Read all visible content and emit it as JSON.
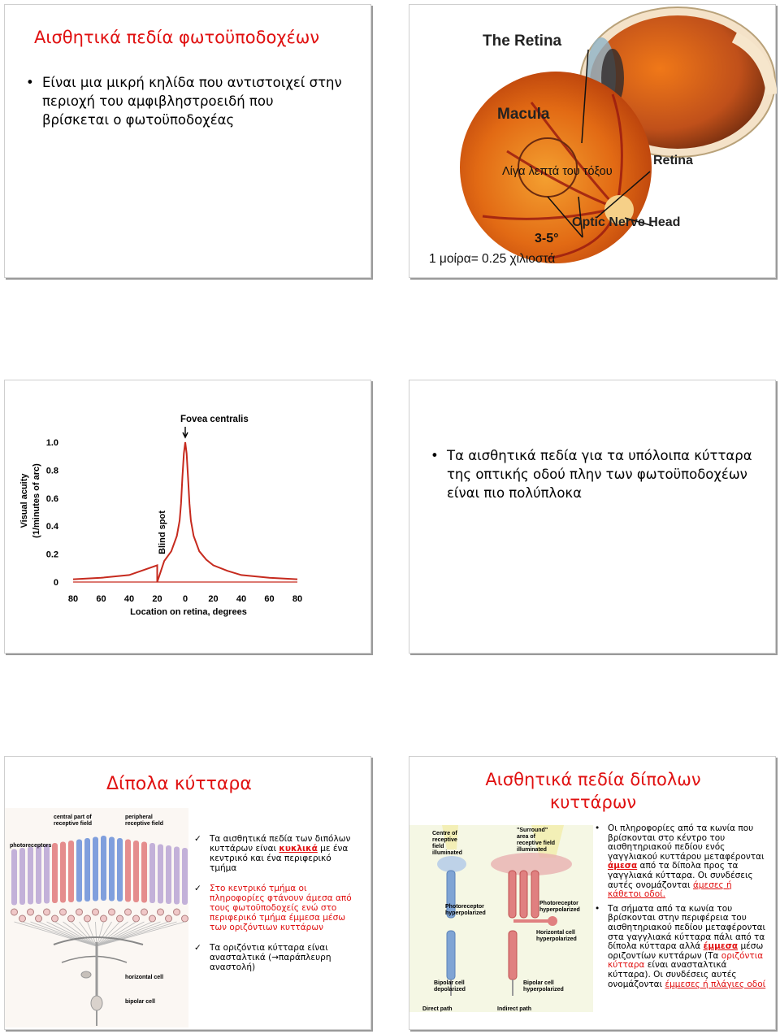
{
  "slide1": {
    "title": "Αισθητικά πεδία φωτοϋποδοχέων",
    "bullet": "Είναι μια μικρή κηλίδα που αντιστοιχεί στην περιοχή του αμφιβληστροειδή που βρίσκεται ο φωτοϋποδοχέας",
    "image_labels": {
      "heading": "The Retina",
      "macula": "Macula",
      "arc": "Λίγα λεπτά του τόξου",
      "retina": "Retina",
      "optic": "Optic Nerve Head",
      "degrees": "3-5°",
      "degree_mm": "1 μοίρα= 0.25 χιλιοστά"
    }
  },
  "slide3": {
    "chart_data": {
      "type": "line",
      "title": "Fovea centralis",
      "xlabel": "Location on retina, degrees",
      "ylabel": "Visual acuity (1/minutes of arc)",
      "annotation": "Blind spot",
      "x_ticks": [
        "80",
        "60",
        "40",
        "20",
        "0",
        "20",
        "40",
        "60",
        "80"
      ],
      "y_ticks": [
        "0",
        "0.2",
        "0.4",
        "0.6",
        "0.8",
        "1.0"
      ],
      "ylim": [
        0,
        1.0
      ],
      "series": [
        {
          "x": [
            -80,
            -60,
            -40,
            -20,
            -20,
            -15,
            -10,
            -6,
            -4,
            -3,
            -2,
            -1,
            0,
            1,
            2,
            3,
            4,
            6,
            10,
            15,
            20,
            30,
            40,
            60,
            80
          ],
          "y": [
            0.02,
            0.03,
            0.05,
            0.12,
            0.0,
            0.15,
            0.22,
            0.33,
            0.44,
            0.56,
            0.75,
            0.92,
            1.0,
            0.92,
            0.75,
            0.56,
            0.44,
            0.33,
            0.22,
            0.16,
            0.12,
            0.08,
            0.05,
            0.03,
            0.02
          ]
        }
      ],
      "color": "#c62a1e"
    }
  },
  "slide4": {
    "bullet": "Τα αισθητικά πεδία για τα υπόλοιπα κύτταρα της οπτικής οδού πλην των φωτοϋποδοχέων είναι πιο πολύπλοκα"
  },
  "slide5": {
    "title": "Δίπολα κύτταρα",
    "image_labels": {
      "central": "central part of receptive field",
      "peripheral": "peripheral receptive field",
      "photoreceptors": "photoreceptors",
      "horizontal": "horizontal cell",
      "bipolar": "bipolar cell"
    },
    "items": [
      {
        "before": "Τα αισθητικά πεδία των διπόλων κυττάρων είναι ",
        "highlight": "κυκλικά",
        "after": " με ένα κεντρικό και ένα περιφερικό τμήμα"
      },
      {
        "text": "Στο κεντρικό τμήμα οι πληροφορίες φτάνουν άμεσα από τους φωτοϋποδοχείς ενώ στο περιφερικό τμήμα έμμεσα μέσω των οριζόντιων κυττάρων"
      },
      {
        "text": "Τα οριζόντια κύτταρα είναι ανασταλτικά (→παράπλευρη αναστολή)"
      }
    ],
    "check": "✓"
  },
  "slide6": {
    "title_line1": "Αισθητικά πεδία δίπολων",
    "title_line2": "κυττάρων",
    "image_labels": {
      "centre": "Centre of receptive field illuminated",
      "surround": "\"Surround\" area of receptive field illuminated",
      "photo_left": "Photoreceptor hyperpolarized",
      "photo_right": "Photoreceptor hyperpolarized",
      "horiz": "Horizontal cell hyperpolarized",
      "bip_left": "Bipolar cell depolarized",
      "bip_right": "Bipolar cell hyperpolarized",
      "direct": "Direct path",
      "indirect": "Indirect path"
    },
    "para1": {
      "text": "Οι πληροφορίες από τα κωνία που βρίσκονται στο κέντρο του αισθητηριακού πεδίου ενός γαγγλιακού κυττάρου μεταφέρονται ",
      "highlight": "άμεσα",
      "text2": " από τα δίπολα προς τα γαγγλιακά κύτταρα. Οι συνδέσεις αυτές ονομάζονται ",
      "highlight2": "άμεσες ή κάθετοι οδοί."
    },
    "para2": {
      "text": "Τα σήματα από τα κωνία του βρίσκονται στην περιφέρεια του αισθητηριακού πεδίου μεταφέρονται στα γαγγλιακά κύτταρα πάλι από τα δίπολα κύτταρα αλλά ",
      "highlight": "έμμεσα",
      "text2": " μέσω οριζοντίων κυττάρων (Τα ",
      "highlight2": "οριζόντια κύτταρα",
      "text3": " είναι ανασταλτικά κύτταρα). Οι συνδέσεις αυτές ονομάζονται ",
      "highlight3": "έμμεσες ή πλάγιες οδοί"
    }
  }
}
